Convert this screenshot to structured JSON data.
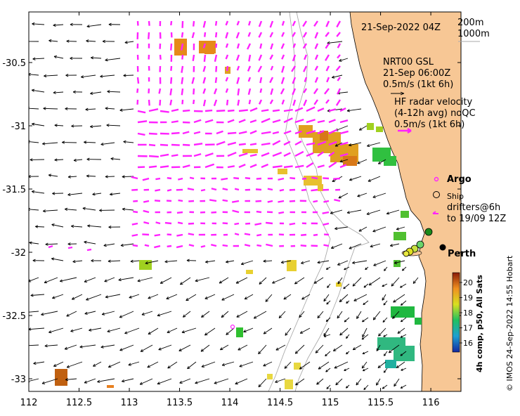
{
  "map": {
    "title_time": "21-Sep-2022 04Z",
    "isobaths": [
      "200m",
      "1000m"
    ],
    "model_label": [
      "NRT00 GSL",
      "21-Sep 06:00Z",
      "0.5m/s (1kt 6h)"
    ],
    "radar_label": [
      "HF radar velocity",
      "(4-12h avg) noQC",
      "0.5m/s (1kt 6h)"
    ],
    "argo_label": "Argo",
    "ship_label": "Ship",
    "drifters_label": [
      "drifters@6h",
      "to 19/09 12Z"
    ],
    "city_label": "Perth",
    "credit": "© IMOS 24-Sep-2022 14:55 Hobart",
    "colorbar_title": "4h comp, p50, All Sats",
    "colorbar_ticks": [
      "20",
      "19",
      "18",
      "17",
      "16"
    ],
    "x_ticks": [
      "112",
      "112.5",
      "113",
      "113.5",
      "114",
      "114.5",
      "115",
      "115.5",
      "116"
    ],
    "y_ticks": [
      "-30.5",
      "-31",
      "-31.5",
      "-32",
      "-32.5",
      "-33"
    ],
    "lon_range": [
      112,
      116.3
    ],
    "lat_range": [
      -33.1,
      -30.1
    ]
  },
  "colors": {
    "land": "#f7c795",
    "model_arrows": "#000000",
    "radar_arrows": "#ff22ff",
    "coastline": "#000000",
    "isobath": "#aaaaaa"
  }
}
